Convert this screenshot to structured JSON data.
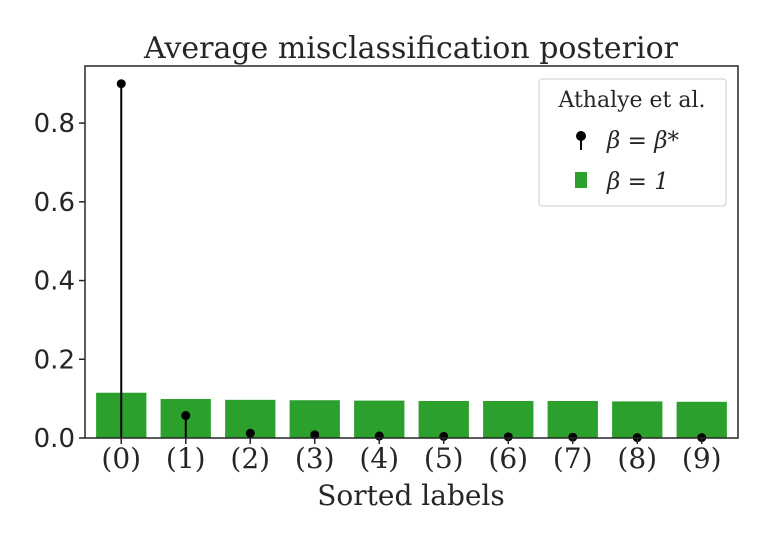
{
  "chart_data": {
    "type": "bar",
    "title": "Average misclassification posterior",
    "xlabel": "Sorted labels",
    "ylabel": "",
    "categories": [
      "(0)",
      "(1)",
      "(2)",
      "(3)",
      "(4)",
      "(5)",
      "(6)",
      "(7)",
      "(8)",
      "(9)"
    ],
    "ylim": [
      0,
      0.945
    ],
    "yticks": [
      "0.0",
      "0.2",
      "0.4",
      "0.6",
      "0.8"
    ],
    "ytick_values": [
      0.0,
      0.2,
      0.4,
      0.6,
      0.8
    ],
    "grid": false,
    "legend": {
      "title": "Athalye et al.",
      "placement": "top-right",
      "entries": [
        "β = β*",
        "β = 1"
      ]
    },
    "series": [
      {
        "name": "β = 1",
        "kind": "bar",
        "color": "#2ca02c",
        "values": [
          0.115,
          0.099,
          0.097,
          0.096,
          0.095,
          0.094,
          0.094,
          0.094,
          0.093,
          0.092
        ]
      },
      {
        "name": "β = β*",
        "kind": "stem",
        "color": "#000000",
        "values": [
          0.9,
          0.057,
          0.012,
          0.008,
          0.005,
          0.004,
          0.003,
          0.002,
          0.001,
          0.001
        ]
      }
    ]
  }
}
